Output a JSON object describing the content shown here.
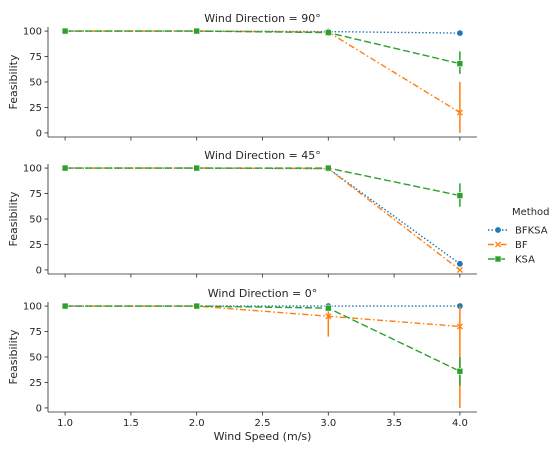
{
  "chart_data": {
    "type": "line",
    "xlabel": "Wind Speed (m/s)",
    "ylabel": "Feasibility",
    "xlim": [
      0.87,
      4.13
    ],
    "ylim": [
      -4,
      104
    ],
    "xticks": [
      "1.0",
      "1.5",
      "2.0",
      "2.5",
      "3.0",
      "3.5",
      "4.0"
    ],
    "yticks": [
      "0",
      "25",
      "50",
      "75",
      "100"
    ],
    "legend": {
      "title": "Method",
      "placement": "right",
      "entries": [
        {
          "name": "BFKSA",
          "color": "#1f77b4",
          "marker": "circle",
          "dash": "dotted"
        },
        {
          "name": "BF",
          "color": "#ff7f0e",
          "marker": "x",
          "dash": "dashdot"
        },
        {
          "name": "KSA",
          "color": "#2ca02c",
          "marker": "square",
          "dash": "dashed"
        }
      ]
    },
    "panels": [
      {
        "title": "Wind Direction = 90°",
        "x": [
          1.0,
          2.0,
          3.0,
          4.0
        ],
        "series": [
          {
            "name": "BFKSA",
            "values": [
              100,
              100,
              99.5,
              98
            ],
            "err": [
              null,
              null,
              null,
              null
            ]
          },
          {
            "name": "BF",
            "values": [
              100,
              100,
              99,
              20
            ],
            "err": [
              null,
              null,
              null,
              [
                0,
                50
              ]
            ]
          },
          {
            "name": "KSA",
            "values": [
              100,
              100,
              98.5,
              68
            ],
            "err": [
              null,
              null,
              null,
              [
                58,
                80
              ]
            ]
          }
        ]
      },
      {
        "title": "Wind Direction = 45°",
        "x": [
          1.0,
          2.0,
          3.0,
          4.0
        ],
        "series": [
          {
            "name": "BFKSA",
            "values": [
              100,
              100,
              99.5,
              6
            ],
            "err": [
              null,
              null,
              null,
              null
            ]
          },
          {
            "name": "BF",
            "values": [
              100,
              100,
              99.5,
              0
            ],
            "err": [
              null,
              null,
              null,
              null
            ]
          },
          {
            "name": "KSA",
            "values": [
              100,
              100,
              100,
              73
            ],
            "err": [
              null,
              null,
              null,
              [
                62,
                85
              ]
            ]
          }
        ]
      },
      {
        "title": "Wind Direction = 0°",
        "x": [
          1.0,
          2.0,
          3.0,
          4.0
        ],
        "series": [
          {
            "name": "BFKSA",
            "values": [
              100,
              100,
              100,
              100
            ],
            "err": [
              null,
              null,
              null,
              null
            ]
          },
          {
            "name": "BF",
            "values": [
              100,
              100,
              90,
              80
            ],
            "err": [
              null,
              null,
              [
                70,
                100
              ],
              [
                0,
                100
              ]
            ]
          },
          {
            "name": "KSA",
            "values": [
              100,
              100,
              98,
              36
            ],
            "err": [
              null,
              null,
              null,
              [
                22,
                50
              ]
            ]
          }
        ]
      }
    ]
  }
}
